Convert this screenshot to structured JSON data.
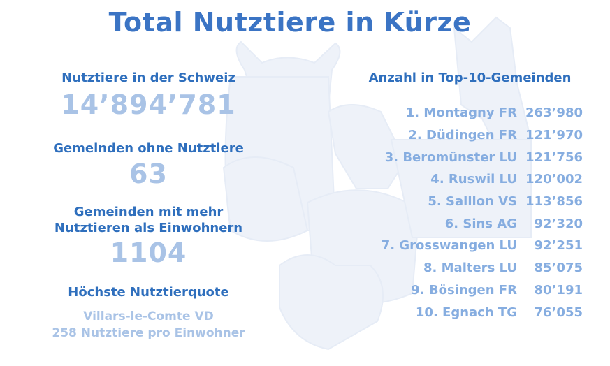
{
  "title": "Total Nutztiere in Kürze",
  "stats": {
    "total_label": "Nutztiere in der Schweiz",
    "total_value": "14’894’781",
    "none_label": "Gemeinden ohne Nutztiere",
    "none_value": "63",
    "more_label_line1": "Gemeinden mit mehr",
    "more_label_line2": "Nutztieren als Einwohnern",
    "more_value": "1104",
    "quota_label": "Höchste Nutztierquote",
    "quota_place": "Villars-le-Comte VD",
    "quota_detail": "258 Nutztiere pro Einwohner"
  },
  "top10": {
    "heading": "Anzahl in Top-10-Gemeinden",
    "rows": [
      {
        "name": "1. Montagny FR",
        "value": "263’980"
      },
      {
        "name": "2. Düdingen FR",
        "value": "121’970"
      },
      {
        "name": "3. Beromünster LU",
        "value": "121’756"
      },
      {
        "name": "4. Ruswil LU",
        "value": "120’002"
      },
      {
        "name": "5. Saillon VS",
        "value": "113’856"
      },
      {
        "name": "6. Sins AG",
        "value": "92’320"
      },
      {
        "name": "7. Grosswangen LU",
        "value": "92’251"
      },
      {
        "name": "8. Malters LU",
        "value": "85’075"
      },
      {
        "name": "9. Bösingen FR",
        "value": "80’191"
      },
      {
        "name": "10. Egnach TG",
        "value": "76’055"
      }
    ]
  },
  "colors": {
    "title": "#3b74c4",
    "heading": "#2f6fbd",
    "value_light": "#a9c3e6",
    "list": "#86ade0",
    "background_art": "#eef2f9"
  }
}
